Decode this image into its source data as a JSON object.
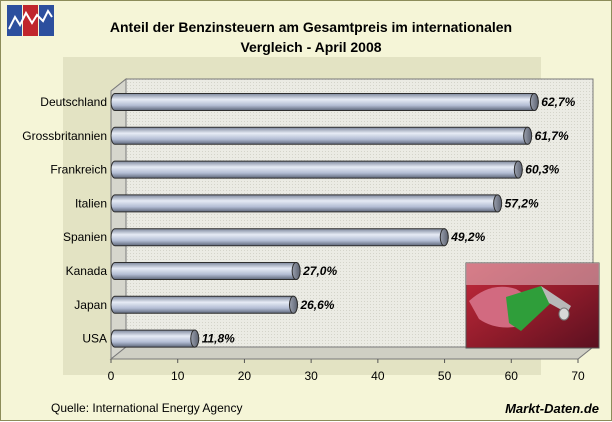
{
  "logo_icon": "line-chart-logo-icon",
  "title_line1": "Anteil der Benzinsteuern am Gesamtpreis im internationalen",
  "title_line2": "Vergleich - April 2008",
  "source": "Quelle: International Energy Agency",
  "brand": "Markt-Daten.de",
  "photo_icon": "fuel-pump-nozzle-photo",
  "colors": {
    "bar": "#b9c4dc",
    "bar_edge": "#3c3c3c",
    "plot_bg": "#e9e9e0",
    "page_bg": "#f5f5d7"
  },
  "chart_data": {
    "type": "bar",
    "orientation": "horizontal",
    "style": "3d-cylinder",
    "categories": [
      "Deutschland",
      "Grossbritannien",
      "Frankreich",
      "Italien",
      "Spanien",
      "Kanada",
      "Japan",
      "USA"
    ],
    "values": [
      62.7,
      61.7,
      60.3,
      57.2,
      49.2,
      27.0,
      26.6,
      11.8
    ],
    "value_labels": [
      "62,7%",
      "61,7%",
      "60,3%",
      "57,2%",
      "49,2%",
      "27,0%",
      "26,6%",
      "11,8%"
    ],
    "xlim": [
      0,
      70
    ],
    "xticks": [
      0,
      10,
      20,
      30,
      40,
      50,
      60,
      70
    ],
    "xlabel": "",
    "ylabel": "",
    "grid": false,
    "legend": "none"
  }
}
